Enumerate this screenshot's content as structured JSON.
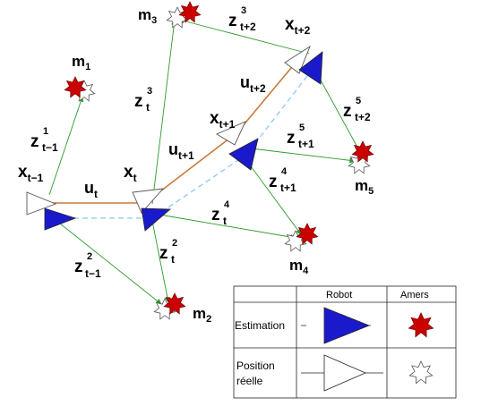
{
  "landmarks": {
    "m1": {
      "base": "m",
      "sub": "1"
    },
    "m2": {
      "base": "m",
      "sub": "2"
    },
    "m3": {
      "base": "m",
      "sub": "3"
    },
    "m4": {
      "base": "m",
      "sub": "4"
    },
    "m5": {
      "base": "m",
      "sub": "5"
    }
  },
  "poses": {
    "x_tm1": {
      "base": "x",
      "sub": "t−1"
    },
    "x_t": {
      "base": "x",
      "sub": "t"
    },
    "x_tp1": {
      "base": "x",
      "sub": "t+1"
    },
    "x_tp2": {
      "base": "x",
      "sub": "t+2"
    }
  },
  "controls": {
    "u_t": {
      "base": "u",
      "sub": "t"
    },
    "u_tp1": {
      "base": "u",
      "sub": "t+1"
    },
    "u_tp2": {
      "base": "u",
      "sub": "t+2"
    }
  },
  "observations": {
    "z1_tm1": {
      "base": "z",
      "sup": "1",
      "sub": "t−1"
    },
    "z2_tm1": {
      "base": "z",
      "sup": "2",
      "sub": "t−1"
    },
    "z3_t": {
      "base": "z",
      "sup": "3",
      "sub": "t"
    },
    "z2_t": {
      "base": "z",
      "sup": "2",
      "sub": "t"
    },
    "z4_t": {
      "base": "z",
      "sup": "4",
      "sub": "t"
    },
    "z4_tp1": {
      "base": "z",
      "sup": "4",
      "sub": "t+1"
    },
    "z5_tp1": {
      "base": "z",
      "sup": "5",
      "sub": "t+1"
    },
    "z3_tp2": {
      "base": "z",
      "sup": "3",
      "sub": "t+2"
    },
    "z5_tp2": {
      "base": "z",
      "sup": "5",
      "sub": "t+2"
    }
  },
  "legend": {
    "col_robot": "Robot",
    "col_amers": "Amers",
    "row_estimation": "Estimation",
    "row_position_line1": "Position",
    "row_position_line2": "réelle"
  },
  "colors": {
    "estimate_fill": "#1a1acc",
    "landmark_fill": "#cc0000",
    "trajectory_real": "#c87a3c",
    "trajectory_estimate": "#8ec8f0",
    "observation": "#2a9a2a",
    "outline": "#555555"
  }
}
